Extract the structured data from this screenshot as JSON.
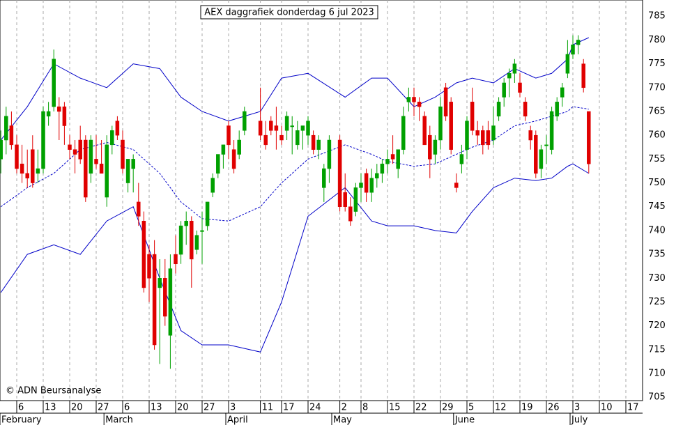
{
  "chart_data": {
    "type": "candlestick",
    "title": "AEX daggrafiek donderdag 6 jul 2023",
    "annotation": "© ADN Beursanalyse",
    "up_color": "#00a000",
    "down_color": "#e00000",
    "band_color": "#0000c8",
    "grid": true,
    "ylim": [
      704.3,
      788.4
    ],
    "yticks": [
      705,
      710,
      715,
      720,
      725,
      730,
      735,
      740,
      745,
      750,
      755,
      760,
      765,
      770,
      775,
      780,
      785
    ],
    "xticks": [
      {
        "value": "2023-02-06",
        "label": "6"
      },
      {
        "value": "2023-02-13",
        "label": "13"
      },
      {
        "value": "2023-02-20",
        "label": "20"
      },
      {
        "value": "2023-02-27",
        "label": "27"
      },
      {
        "value": "2023-03-06",
        "label": "6"
      },
      {
        "value": "2023-03-13",
        "label": "13"
      },
      {
        "value": "2023-03-20",
        "label": "20"
      },
      {
        "value": "2023-03-27",
        "label": "27"
      },
      {
        "value": "2023-04-03",
        "label": "3"
      },
      {
        "value": "2023-04-11",
        "label": "11"
      },
      {
        "value": "2023-04-17",
        "label": "17"
      },
      {
        "value": "2023-04-24",
        "label": "24"
      },
      {
        "value": "2023-05-02",
        "label": "2"
      },
      {
        "value": "2023-05-08",
        "label": "8"
      },
      {
        "value": "2023-05-15",
        "label": "15"
      },
      {
        "value": "2023-05-22",
        "label": "22"
      },
      {
        "value": "2023-05-29",
        "label": "29"
      },
      {
        "value": "2023-06-05",
        "label": "5"
      },
      {
        "value": "2023-06-12",
        "label": "12"
      },
      {
        "value": "2023-06-19",
        "label": "19"
      },
      {
        "value": "2023-06-26",
        "label": "26"
      },
      {
        "value": "2023-07-03",
        "label": "3"
      },
      {
        "value": "2023-07-10",
        "label": "10"
      },
      {
        "value": "2023-07-17",
        "label": "17"
      }
    ],
    "month_ticks": [
      {
        "value": "2023-02-01",
        "label": "February"
      },
      {
        "value": "2023-03-01",
        "label": "March"
      },
      {
        "value": "2023-04-01",
        "label": "April"
      },
      {
        "value": "2023-05-01",
        "label": "May"
      },
      {
        "value": "2023-06-01",
        "label": "June"
      },
      {
        "value": "2023-07-01",
        "label": "July"
      }
    ],
    "x": [
      "2023-02-01",
      "2023-02-02",
      "2023-02-03",
      "2023-02-06",
      "2023-02-07",
      "2023-02-08",
      "2023-02-09",
      "2023-02-10",
      "2023-02-13",
      "2023-02-14",
      "2023-02-15",
      "2023-02-16",
      "2023-02-17",
      "2023-02-20",
      "2023-02-21",
      "2023-02-22",
      "2023-02-23",
      "2023-02-24",
      "2023-02-27",
      "2023-02-28",
      "2023-03-01",
      "2023-03-02",
      "2023-03-03",
      "2023-03-06",
      "2023-03-07",
      "2023-03-08",
      "2023-03-09",
      "2023-03-10",
      "2023-03-13",
      "2023-03-14",
      "2023-03-15",
      "2023-03-16",
      "2023-03-17",
      "2023-03-20",
      "2023-03-21",
      "2023-03-22",
      "2023-03-23",
      "2023-03-24",
      "2023-03-27",
      "2023-03-28",
      "2023-03-29",
      "2023-03-30",
      "2023-03-31",
      "2023-04-03",
      "2023-04-04",
      "2023-04-05",
      "2023-04-06",
      "2023-04-11",
      "2023-04-12",
      "2023-04-13",
      "2023-04-14",
      "2023-04-17",
      "2023-04-18",
      "2023-04-19",
      "2023-04-20",
      "2023-04-21",
      "2023-04-24",
      "2023-04-25",
      "2023-04-26",
      "2023-04-27",
      "2023-04-28",
      "2023-05-02",
      "2023-05-03",
      "2023-05-04",
      "2023-05-05",
      "2023-05-08",
      "2023-05-09",
      "2023-05-10",
      "2023-05-11",
      "2023-05-12",
      "2023-05-15",
      "2023-05-16",
      "2023-05-17",
      "2023-05-18",
      "2023-05-19",
      "2023-05-22",
      "2023-05-23",
      "2023-05-24",
      "2023-05-25",
      "2023-05-26",
      "2023-05-29",
      "2023-05-30",
      "2023-05-31",
      "2023-06-01",
      "2023-06-02",
      "2023-06-05",
      "2023-06-06",
      "2023-06-07",
      "2023-06-08",
      "2023-06-09",
      "2023-06-12",
      "2023-06-13",
      "2023-06-14",
      "2023-06-15",
      "2023-06-16",
      "2023-06-19",
      "2023-06-20",
      "2023-06-21",
      "2023-06-22",
      "2023-06-23",
      "2023-06-26",
      "2023-06-27",
      "2023-06-28",
      "2023-06-29",
      "2023-06-30",
      "2023-07-03",
      "2023-07-04",
      "2023-07-05",
      "2023-07-06"
    ],
    "open": [
      755,
      759,
      762,
      758,
      754,
      752,
      757,
      752,
      753,
      764,
      766,
      766,
      766,
      758,
      757,
      759,
      759,
      752,
      755,
      754,
      747,
      758,
      763,
      759,
      750,
      753,
      746,
      742,
      735,
      735,
      728,
      730,
      718,
      735,
      735,
      741,
      742,
      736,
      740,
      741,
      748,
      752,
      756,
      762,
      757,
      756,
      761,
      763,
      760,
      763,
      762,
      760,
      761,
      762,
      758,
      761,
      760,
      760,
      757,
      749,
      753,
      759,
      748,
      745,
      744,
      749,
      752,
      748,
      751,
      752,
      754,
      756,
      753,
      757,
      767,
      768,
      767,
      764,
      760,
      756,
      759,
      770,
      767,
      750,
      754,
      757,
      767,
      761,
      761,
      761,
      759,
      764,
      768,
      772,
      773,
      771,
      767,
      761,
      760,
      753,
      758,
      757,
      764,
      768,
      773,
      777,
      779,
      775,
      765
    ],
    "high": [
      761,
      766,
      765,
      760,
      758,
      757,
      760,
      757,
      766,
      767,
      778,
      768,
      767,
      760,
      759,
      762,
      760,
      760,
      760,
      759,
      760,
      762,
      764,
      761,
      755,
      756,
      750,
      744,
      737,
      738,
      734,
      734,
      735,
      739,
      742,
      744,
      743,
      740,
      744,
      746,
      752,
      756,
      758,
      763,
      759,
      761,
      766,
      770,
      763,
      764,
      766,
      762,
      765,
      764,
      763,
      762,
      764,
      761,
      760,
      754,
      760,
      760,
      752,
      747,
      750,
      752,
      753,
      753,
      754,
      755,
      757,
      760,
      757,
      766,
      770,
      770,
      768,
      765,
      762,
      760,
      768,
      771,
      768,
      752,
      758,
      764,
      770,
      763,
      762,
      763,
      766,
      768,
      772,
      774,
      776,
      773,
      768,
      762,
      761,
      758,
      760,
      766,
      768,
      771,
      780,
      781,
      781,
      776,
      765
    ],
    "low": [
      752,
      756,
      757,
      752,
      750,
      749,
      749,
      750,
      752,
      762,
      765,
      759,
      758,
      755,
      752,
      754,
      746,
      750,
      753,
      752,
      745,
      756,
      759,
      752,
      748,
      748,
      741,
      727,
      725,
      715,
      712,
      720,
      711,
      731,
      733,
      737,
      728,
      735,
      733,
      740,
      747,
      751,
      753,
      755,
      752,
      755,
      760,
      759,
      757,
      760,
      757,
      758,
      759,
      756,
      757,
      757,
      758,
      756,
      755,
      746,
      750,
      744,
      744,
      741,
      743,
      746,
      746,
      746,
      749,
      750,
      752,
      754,
      751,
      756,
      765,
      764,
      763,
      758,
      751,
      754,
      757,
      763,
      756,
      748,
      752,
      755,
      760,
      758,
      756,
      757,
      758,
      763,
      766,
      768,
      771,
      768,
      763,
      757,
      751,
      751,
      754,
      756,
      763,
      766,
      772,
      776,
      777,
      769,
      752
    ],
    "close": [
      759,
      764,
      758,
      753,
      752,
      751,
      750,
      753,
      765,
      765,
      776,
      765,
      762,
      757,
      756,
      755,
      747,
      759,
      754,
      752,
      758,
      761,
      760,
      753,
      755,
      755,
      743,
      728,
      730,
      716,
      730,
      722,
      732,
      733,
      741,
      742,
      734,
      739,
      740,
      746,
      751,
      756,
      758,
      758,
      753,
      759,
      765,
      760,
      758,
      761,
      761,
      759,
      764,
      762,
      761,
      762,
      763,
      757,
      759,
      753,
      759,
      745,
      745,
      742,
      749,
      750,
      748,
      751,
      752,
      754,
      755,
      755,
      757,
      764,
      768,
      767,
      766,
      758,
      755,
      759,
      766,
      764,
      757,
      749,
      756,
      763,
      761,
      760,
      758,
      758,
      762,
      767,
      771,
      773,
      775,
      769,
      764,
      759,
      752,
      757,
      758,
      765,
      767,
      770,
      777,
      779,
      780,
      770,
      754
    ],
    "bands": [
      {
        "style": "solid",
        "x": [
          "2023-02-01",
          "2023-02-08",
          "2023-02-15",
          "2023-02-22",
          "2023-03-01",
          "2023-03-08",
          "2023-03-15",
          "2023-03-21",
          "2023-03-27",
          "2023-04-03",
          "2023-04-11",
          "2023-04-17",
          "2023-04-24",
          "2023-05-03",
          "2023-05-10",
          "2023-05-15",
          "2023-05-22",
          "2023-05-26",
          "2023-06-01",
          "2023-06-06",
          "2023-06-12",
          "2023-06-16",
          "2023-06-22",
          "2023-06-27",
          "2023-06-30",
          "2023-07-03",
          "2023-07-06"
        ],
        "values": [
          759,
          766,
          775,
          772,
          770,
          775,
          774,
          768,
          765,
          763,
          765,
          772,
          773,
          768,
          772,
          772,
          766,
          768,
          771,
          772,
          771,
          774,
          772,
          773,
          776,
          779,
          780.5
        ]
      },
      {
        "style": "dashed",
        "x": [
          "2023-02-01",
          "2023-02-08",
          "2023-02-15",
          "2023-02-22",
          "2023-03-01",
          "2023-03-08",
          "2023-03-15",
          "2023-03-21",
          "2023-03-27",
          "2023-04-03",
          "2023-04-11",
          "2023-04-17",
          "2023-04-24",
          "2023-05-03",
          "2023-05-10",
          "2023-05-15",
          "2023-05-22",
          "2023-05-26",
          "2023-06-01",
          "2023-06-06",
          "2023-06-12",
          "2023-06-16",
          "2023-06-22",
          "2023-06-27",
          "2023-06-30",
          "2023-07-03",
          "2023-07-06"
        ],
        "values": [
          745,
          749,
          752,
          757,
          758.5,
          757,
          752,
          746,
          742.5,
          742,
          745,
          750,
          755,
          758,
          756,
          754.5,
          753.5,
          754,
          756,
          757.5,
          759,
          762,
          763,
          764,
          765,
          766,
          765.5
        ]
      },
      {
        "style": "solid",
        "x": [
          "2023-02-01",
          "2023-02-08",
          "2023-02-15",
          "2023-02-22",
          "2023-03-01",
          "2023-03-08",
          "2023-03-15",
          "2023-03-21",
          "2023-03-27",
          "2023-04-03",
          "2023-04-11",
          "2023-04-17",
          "2023-04-24",
          "2023-05-03",
          "2023-05-10",
          "2023-05-15",
          "2023-05-22",
          "2023-05-26",
          "2023-06-01",
          "2023-06-06",
          "2023-06-12",
          "2023-06-16",
          "2023-06-22",
          "2023-06-27",
          "2023-06-30",
          "2023-07-03",
          "2023-07-06"
        ],
        "values": [
          727,
          735,
          737,
          735,
          742,
          745,
          730,
          719,
          716,
          716,
          714.5,
          725,
          743,
          749,
          742,
          741,
          741,
          740,
          739.5,
          744,
          749,
          751,
          750.5,
          751,
          753.5,
          754,
          752
        ]
      }
    ]
  }
}
